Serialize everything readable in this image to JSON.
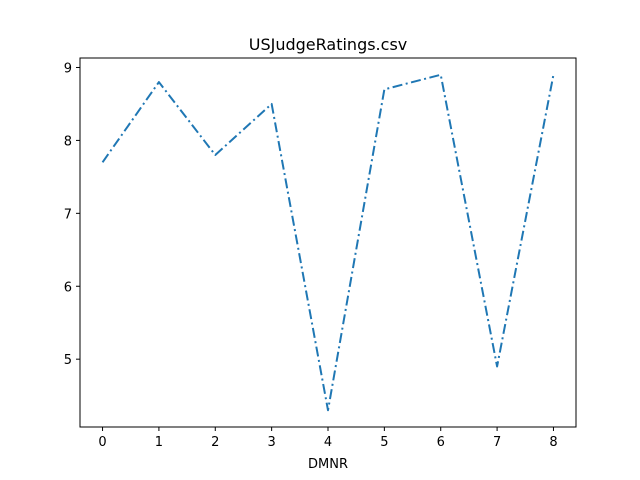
{
  "chart_data": {
    "type": "line",
    "title": "USJudgeRatings.csv",
    "xlabel": "DMNR",
    "ylabel": "",
    "x": [
      0,
      1,
      2,
      3,
      4,
      5,
      6,
      7,
      8
    ],
    "series": [
      {
        "values": [
          7.7,
          8.8,
          7.8,
          8.5,
          4.3,
          8.7,
          8.9,
          4.9,
          8.9
        ],
        "color": "#1f77b4",
        "linestyle": "dash-dot"
      }
    ],
    "xlim": [
      -0.4,
      8.4
    ],
    "ylim": [
      4.07,
      9.13
    ],
    "xticks": [
      0,
      1,
      2,
      3,
      4,
      5,
      6,
      7,
      8
    ],
    "yticks": [
      5,
      6,
      7,
      8,
      9
    ],
    "grid": false,
    "legend": "none"
  }
}
